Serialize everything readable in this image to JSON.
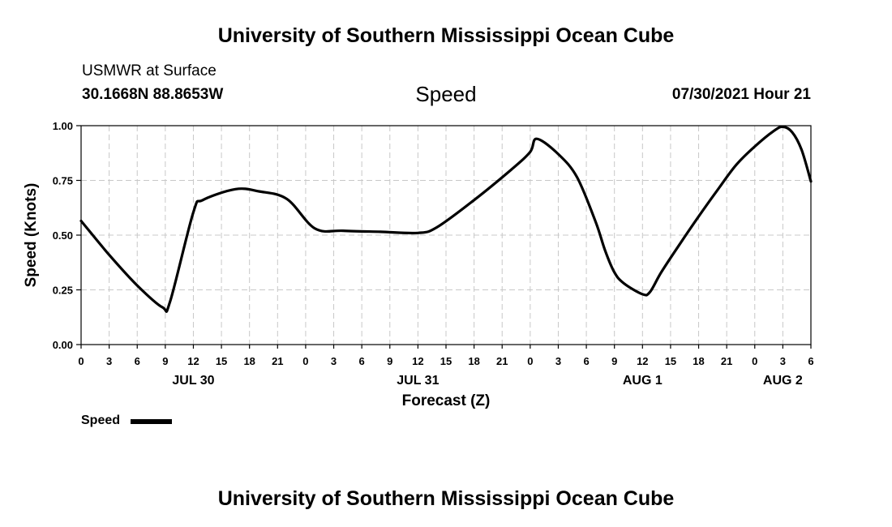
{
  "header": {
    "title_top": "University of Southern Mississippi Ocean Cube",
    "station_line": "USMWR at Surface",
    "coords_line": "30.1668N  88.8653W",
    "plot_title": "Speed",
    "timestamp": "07/30/2021 Hour 21"
  },
  "footer": {
    "title_bottom": "University of Southern Mississippi Ocean Cube"
  },
  "legend": {
    "label": "Speed",
    "color": "#000000"
  },
  "chart_data": {
    "type": "line",
    "title": "Speed",
    "xlabel": "Forecast (Z)",
    "ylabel": "Speed (Knots)",
    "xlim": [
      0,
      78
    ],
    "ylim": [
      0,
      1.0
    ],
    "grid": true,
    "y_ticks": [
      "0.00",
      "0.25",
      "0.50",
      "0.75",
      "1.00"
    ],
    "y_tick_values": [
      0,
      0.25,
      0.5,
      0.75,
      1.0
    ],
    "x_tick_labels": [
      "0",
      "3",
      "6",
      "9",
      "12",
      "15",
      "18",
      "21",
      "0",
      "3",
      "6",
      "9",
      "12",
      "15",
      "18",
      "21",
      "0",
      "3",
      "6",
      "9",
      "12",
      "15",
      "18",
      "21",
      "0",
      "3",
      "6"
    ],
    "x_tick_values": [
      0,
      3,
      6,
      9,
      12,
      15,
      18,
      21,
      24,
      27,
      30,
      33,
      36,
      39,
      42,
      45,
      48,
      51,
      54,
      57,
      60,
      63,
      66,
      69,
      72,
      75,
      78
    ],
    "date_labels": [
      {
        "label": "JUL 30",
        "x": 12
      },
      {
        "label": "JUL 31",
        "x": 36
      },
      {
        "label": "AUG 1",
        "x": 60
      },
      {
        "label": "AUG 2",
        "x": 75
      }
    ],
    "series": [
      {
        "name": "Speed",
        "x": [
          0,
          3,
          6,
          8.7,
          9.5,
          12,
          13,
          16.5,
          19,
          22,
          25,
          28,
          32,
          36,
          38,
          42,
          46,
          48,
          48.7,
          51,
          53,
          55,
          56,
          57,
          58,
          60,
          60.8,
          62,
          64,
          66,
          68,
          70,
          72,
          74,
          75,
          76,
          77,
          78
        ],
        "values": [
          0.565,
          0.41,
          0.27,
          0.17,
          0.195,
          0.605,
          0.66,
          0.71,
          0.7,
          0.665,
          0.53,
          0.52,
          0.515,
          0.51,
          0.535,
          0.66,
          0.8,
          0.88,
          0.94,
          0.87,
          0.765,
          0.56,
          0.43,
          0.33,
          0.28,
          0.23,
          0.24,
          0.33,
          0.46,
          0.585,
          0.705,
          0.82,
          0.905,
          0.975,
          0.995,
          0.97,
          0.89,
          0.745
        ]
      }
    ]
  }
}
